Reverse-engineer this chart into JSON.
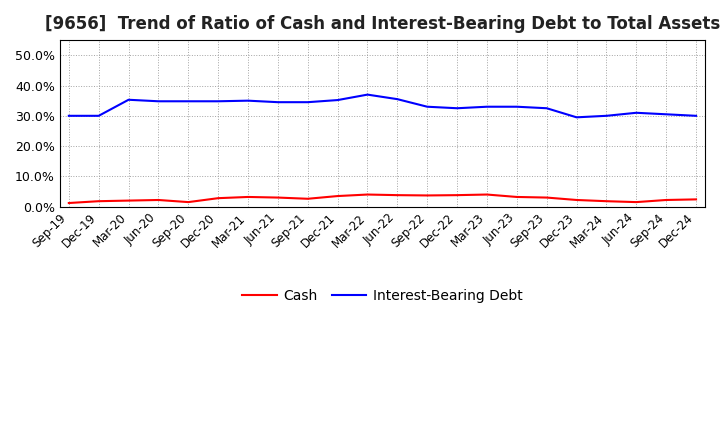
{
  "title": "[9656]  Trend of Ratio of Cash and Interest-Bearing Debt to Total Assets",
  "x_labels": [
    "Sep-19",
    "Dec-19",
    "Mar-20",
    "Jun-20",
    "Sep-20",
    "Dec-20",
    "Mar-21",
    "Jun-21",
    "Sep-21",
    "Dec-21",
    "Mar-22",
    "Jun-22",
    "Sep-22",
    "Dec-22",
    "Mar-23",
    "Jun-23",
    "Sep-23",
    "Dec-23",
    "Mar-24",
    "Jun-24",
    "Sep-24",
    "Dec-24"
  ],
  "cash": [
    1.2,
    1.8,
    2.0,
    2.2,
    1.5,
    2.8,
    3.2,
    3.0,
    2.6,
    3.5,
    4.0,
    3.8,
    3.7,
    3.8,
    4.0,
    3.2,
    3.0,
    2.2,
    1.8,
    1.5,
    2.2,
    2.4
  ],
  "interest_bearing_debt": [
    30.0,
    30.0,
    35.3,
    34.8,
    34.8,
    34.8,
    35.0,
    34.5,
    34.5,
    35.2,
    37.0,
    35.5,
    33.0,
    32.5,
    33.0,
    33.0,
    32.5,
    29.5,
    30.0,
    31.0,
    30.5,
    30.0
  ],
  "cash_color": "#ff0000",
  "debt_color": "#0000ff",
  "ylim": [
    0,
    55
  ],
  "yticks": [
    0.0,
    10.0,
    20.0,
    30.0,
    40.0,
    50.0
  ],
  "grid_color": "#999999",
  "background_color": "#ffffff",
  "legend_labels": [
    "Cash",
    "Interest-Bearing Debt"
  ],
  "title_fontsize": 12,
  "tick_fontsize": 8.5,
  "ytick_fontsize": 9
}
